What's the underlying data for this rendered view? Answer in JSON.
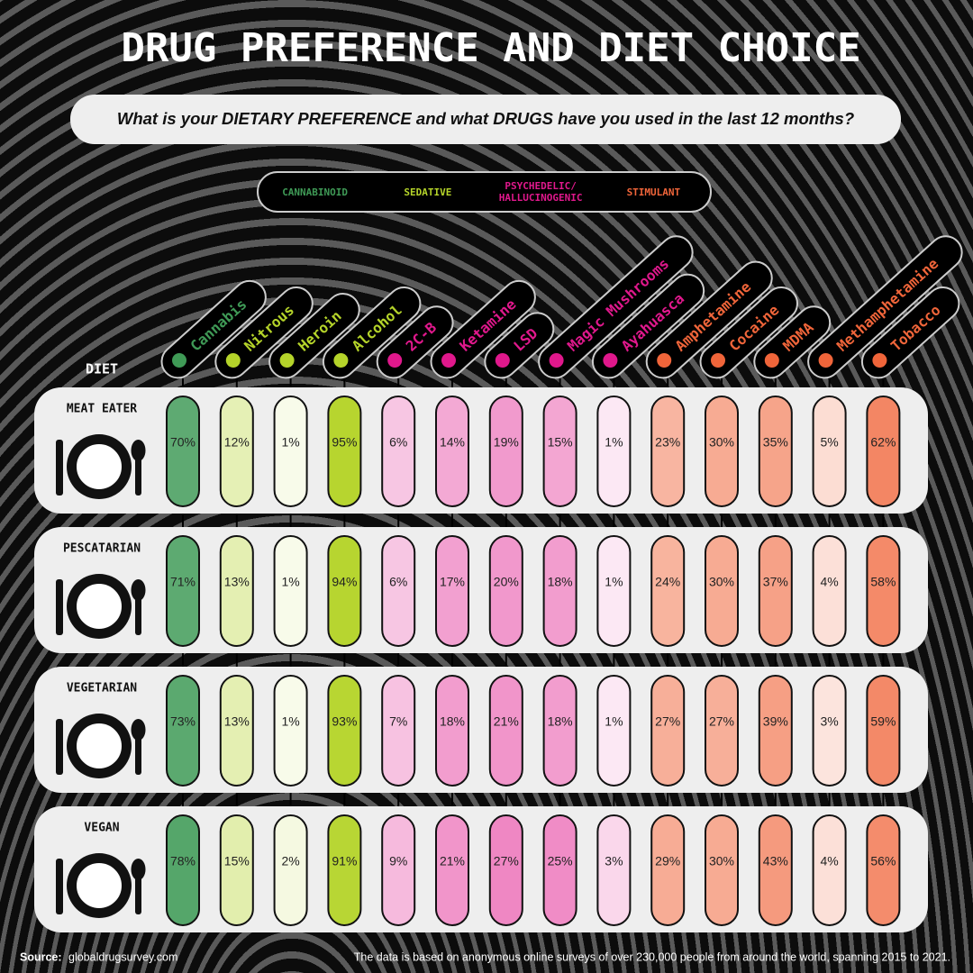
{
  "chart_data": {
    "type": "heatmap",
    "title": "DRUG PREFERENCE AND DIET CHOICE",
    "subtitle": "What is your DIETARY PREFERENCE and what DRUGS have you used in the last 12 months?",
    "row_header": "DIET",
    "groups": [
      {
        "name": "CANNABINOID",
        "color": "#3f9a56",
        "categories": [
          "Cannabis"
        ]
      },
      {
        "name": "SEDATIVE",
        "color": "#b5d42a",
        "categories": [
          "Nitrous",
          "Heroin",
          "Alcohol"
        ]
      },
      {
        "name": "PSYCHEDELIC/ HALLUCINOGENIC",
        "color": "#e0188c",
        "categories": [
          "2C-B",
          "Ketamine",
          "LSD",
          "Magic Mushrooms",
          "Ayahuasca"
        ]
      },
      {
        "name": "STIMULANT",
        "color": "#f0653a",
        "categories": [
          "Amphetamine",
          "Cocaine",
          "MDMA",
          "Methamphetamine",
          "Tobacco"
        ]
      }
    ],
    "series": [
      {
        "name": "MEAT EATER",
        "values": [
          70,
          12,
          1,
          95,
          6,
          14,
          19,
          15,
          1,
          23,
          30,
          35,
          5,
          62
        ],
        "value_labels": [
          "70%",
          "12%",
          "1%",
          "95%",
          "6%",
          "14%",
          "19%",
          "15%",
          "1%",
          "23%",
          "30%",
          "35%",
          "5%",
          "62%"
        ]
      },
      {
        "name": "PESCATARIAN",
        "values": [
          71,
          13,
          1,
          94,
          6,
          17,
          20,
          18,
          1,
          24,
          30,
          37,
          4,
          58
        ],
        "value_labels": [
          "71%",
          "13%",
          "1%",
          "94%",
          "6%",
          "17%",
          "20%",
          "18%",
          "1%",
          "24%",
          "30%",
          "37%",
          "4%",
          "58%"
        ]
      },
      {
        "name": "VEGETARIAN",
        "values": [
          73,
          13,
          1,
          93,
          7,
          18,
          21,
          18,
          1,
          27,
          27,
          39,
          3,
          59
        ],
        "value_labels": [
          "73%",
          "13%",
          "1%",
          "93%",
          "7%",
          "18%",
          "21%",
          "18%",
          "1%",
          "27%",
          "27%",
          "39%",
          "3%",
          "59%"
        ]
      },
      {
        "name": "VEGAN",
        "values": [
          78,
          15,
          2,
          91,
          9,
          21,
          27,
          25,
          3,
          29,
          30,
          43,
          4,
          56
        ],
        "value_labels": [
          "78%",
          "15%",
          "2%",
          "91%",
          "9%",
          "21%",
          "27%",
          "25%",
          "3%",
          "29%",
          "30%",
          "43%",
          "4%",
          "56%"
        ]
      }
    ],
    "source_label": "Source:",
    "source": "globaldrugsurvey.com",
    "note": "The data is based on anonymous online surveys of over 230,000 people from around the world, spanning 2015 to 2021."
  }
}
